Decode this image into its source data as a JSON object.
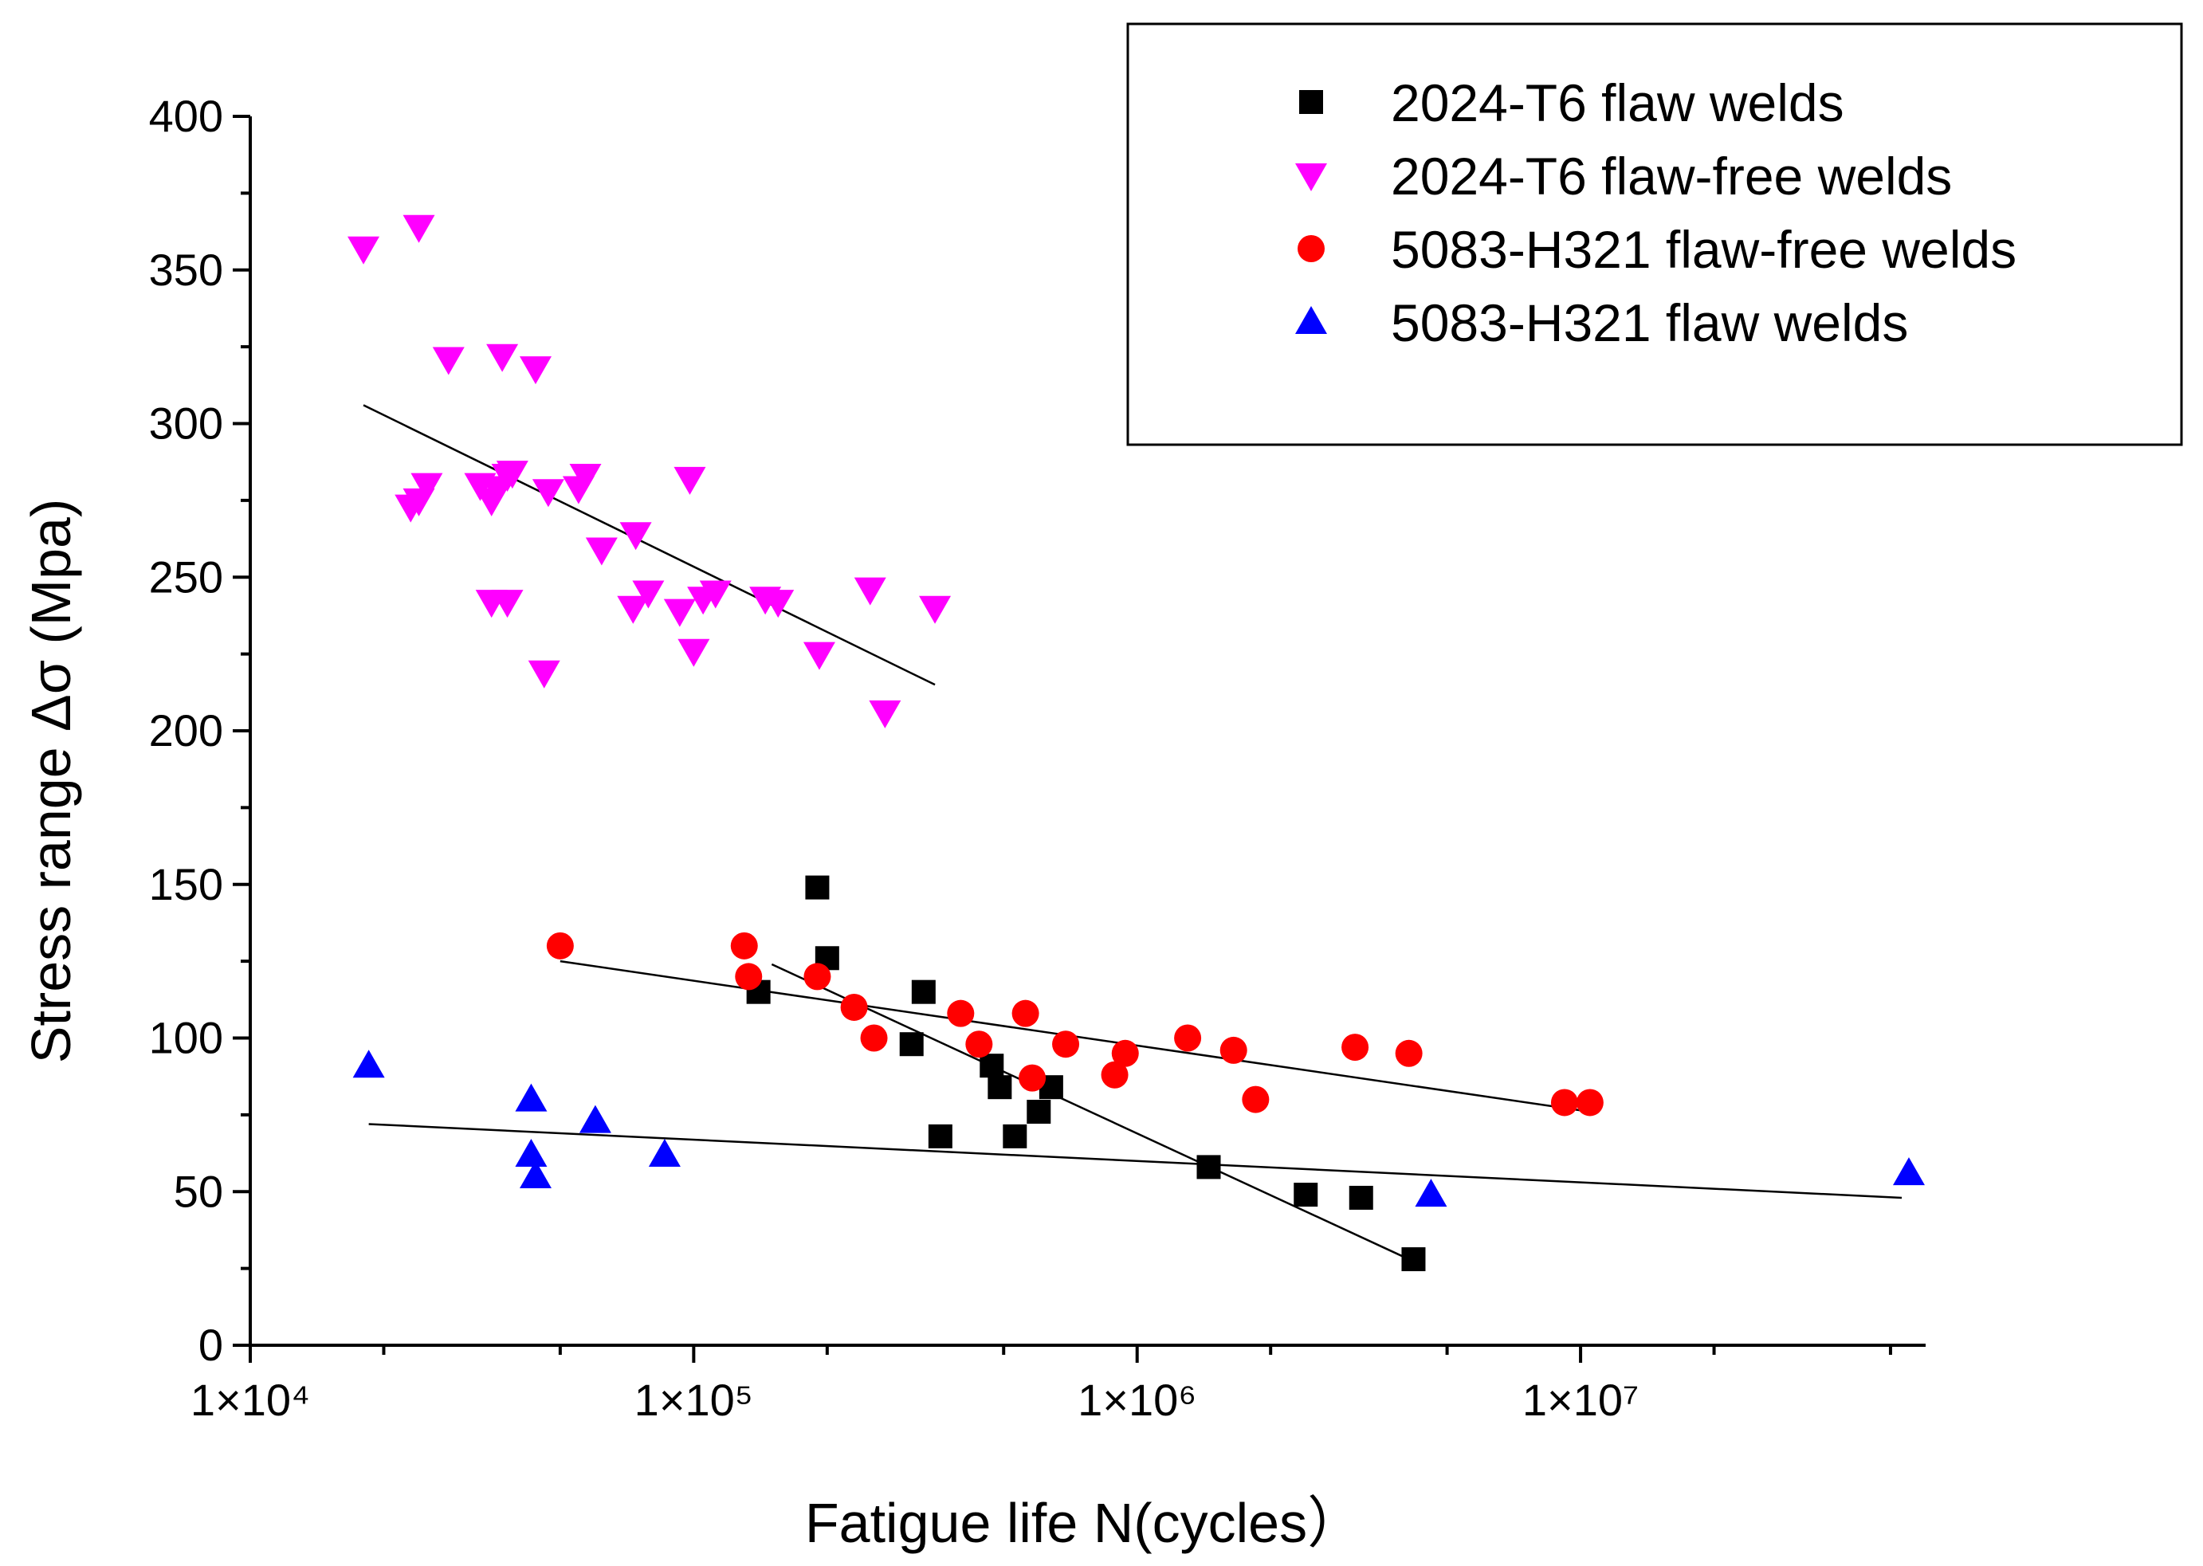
{
  "chart_data": {
    "type": "scatter",
    "title": "",
    "xlabel": "Fatigue life N(cycles）",
    "ylabel": "Stress range Δσ (Mpa)",
    "x_scale": "log",
    "xlim": [
      10000,
      60000000
    ],
    "ylim": [
      0,
      400
    ],
    "x_ticks": [
      {
        "value": 10000,
        "label": "1×10⁴"
      },
      {
        "value": 100000,
        "label": "1×10⁵"
      },
      {
        "value": 1000000,
        "label": "1×10⁶"
      },
      {
        "value": 10000000,
        "label": "1×10⁷"
      }
    ],
    "y_ticks": [
      0,
      50,
      100,
      150,
      200,
      250,
      300,
      350,
      400
    ],
    "grid": false,
    "legend_position": "top-right",
    "series": [
      {
        "name": "2024-T6 flaw welds",
        "marker": "square",
        "color": "#000000",
        "points": [
          [
            140000,
            115
          ],
          [
            190000,
            149
          ],
          [
            200000,
            126
          ],
          [
            310000,
            98
          ],
          [
            330000,
            115
          ],
          [
            360000,
            68
          ],
          [
            470000,
            91
          ],
          [
            490000,
            84
          ],
          [
            530000,
            68
          ],
          [
            600000,
            76
          ],
          [
            640000,
            84
          ],
          [
            1450000,
            58
          ],
          [
            2400000,
            49
          ],
          [
            3200000,
            48
          ],
          [
            4200000,
            28
          ]
        ],
        "fit": [
          [
            150000,
            124
          ],
          [
            4100000,
            28
          ]
        ]
      },
      {
        "name": "2024-T6 flaw-free welds",
        "marker": "triangle-down",
        "color": "#FF00FF",
        "points": [
          [
            18000,
            357
          ],
          [
            24000,
            364
          ],
          [
            28000,
            321
          ],
          [
            37000,
            322
          ],
          [
            44000,
            318
          ],
          [
            23000,
            273
          ],
          [
            24000,
            275
          ],
          [
            25000,
            280
          ],
          [
            33000,
            280
          ],
          [
            35000,
            275
          ],
          [
            36000,
            279
          ],
          [
            38000,
            283
          ],
          [
            39000,
            284
          ],
          [
            47000,
            278
          ],
          [
            55000,
            279
          ],
          [
            57000,
            283
          ],
          [
            35000,
            242
          ],
          [
            38000,
            242
          ],
          [
            62000,
            259
          ],
          [
            74000,
            264
          ],
          [
            73000,
            240
          ],
          [
            79000,
            245
          ],
          [
            93000,
            239
          ],
          [
            98000,
            282
          ],
          [
            100000,
            226
          ],
          [
            105000,
            243
          ],
          [
            112000,
            245
          ],
          [
            145000,
            243
          ],
          [
            155000,
            242
          ],
          [
            46000,
            219
          ],
          [
            192000,
            225
          ],
          [
            250000,
            246
          ],
          [
            270000,
            206
          ],
          [
            350000,
            240
          ]
        ],
        "fit": [
          [
            18000,
            306
          ],
          [
            350000,
            215
          ]
        ]
      },
      {
        "name": "5083-H321 flaw-free welds",
        "marker": "circle",
        "color": "#FF0000",
        "points": [
          [
            50000,
            130
          ],
          [
            130000,
            130
          ],
          [
            133000,
            120
          ],
          [
            190000,
            120
          ],
          [
            230000,
            110
          ],
          [
            255000,
            100
          ],
          [
            400000,
            108
          ],
          [
            440000,
            98
          ],
          [
            560000,
            108
          ],
          [
            580000,
            87
          ],
          [
            690000,
            98
          ],
          [
            890000,
            88
          ],
          [
            940000,
            95
          ],
          [
            1300000,
            100
          ],
          [
            1650000,
            96
          ],
          [
            1850000,
            80
          ],
          [
            3100000,
            97
          ],
          [
            4100000,
            95
          ],
          [
            9200000,
            79
          ],
          [
            10500000,
            79
          ]
        ],
        "fit": [
          [
            50000,
            125
          ],
          [
            10500000,
            76
          ]
        ]
      },
      {
        "name": "5083-H321 flaw welds",
        "marker": "triangle-up",
        "color": "#0000FF",
        "points": [
          [
            18500,
            91
          ],
          [
            43000,
            80
          ],
          [
            43000,
            62
          ],
          [
            44000,
            55
          ],
          [
            60000,
            73
          ],
          [
            86000,
            62
          ],
          [
            4600000,
            49
          ],
          [
            55000000,
            56
          ]
        ],
        "fit": [
          [
            18500,
            72
          ],
          [
            53000000,
            48
          ]
        ]
      }
    ]
  }
}
